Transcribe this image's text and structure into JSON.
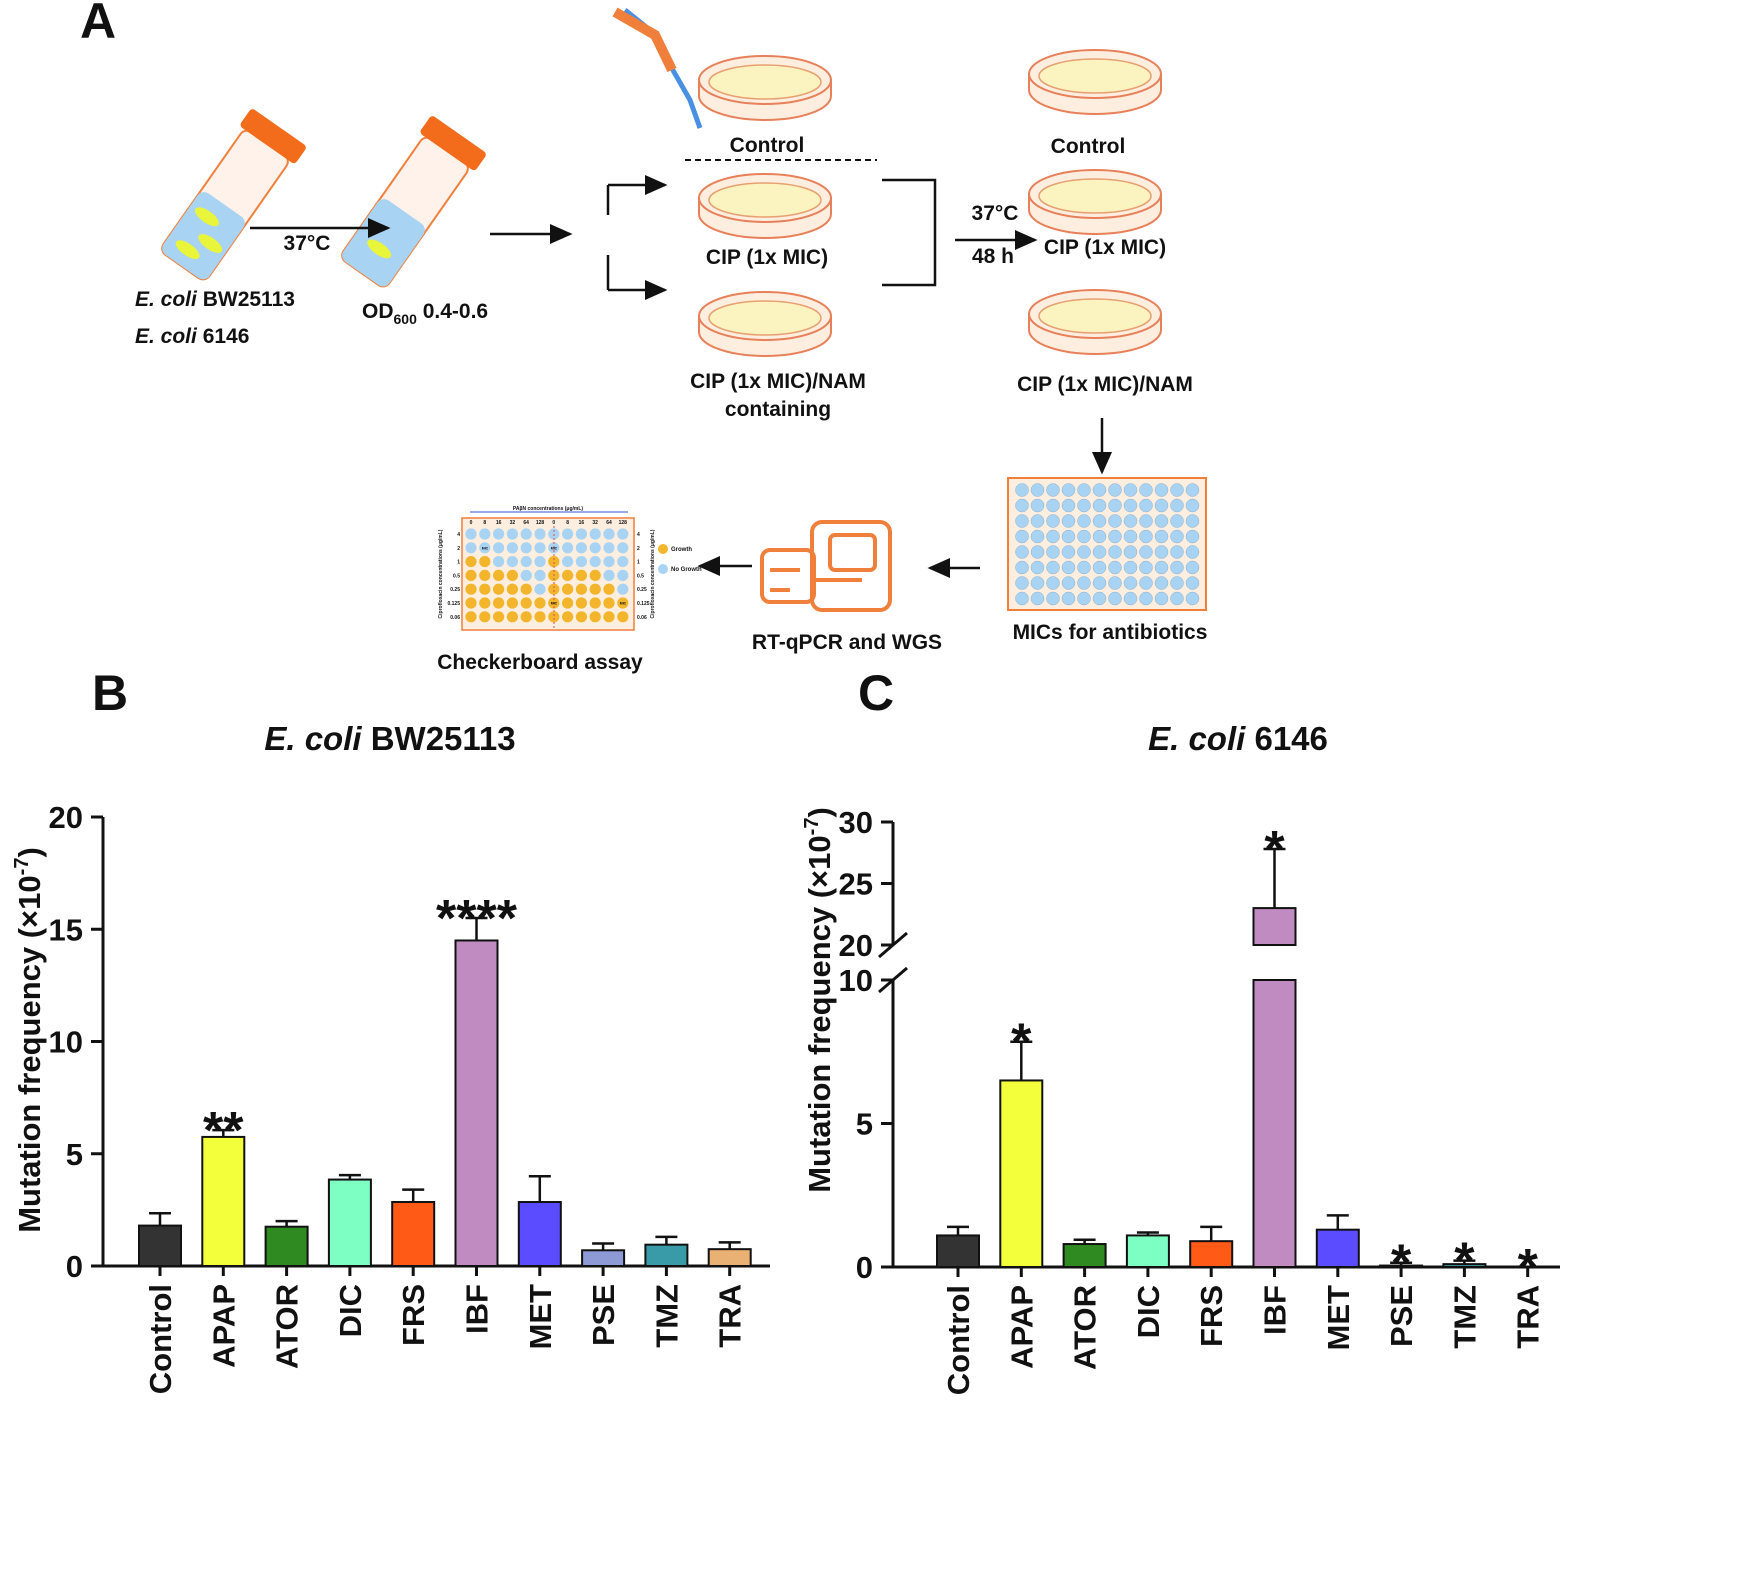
{
  "panel_labels": [
    "A",
    "B",
    "C"
  ],
  "diagram": {
    "strains": [
      [
        "E. coli",
        "BW25113"
      ],
      [
        "E. coli",
        "6146"
      ]
    ],
    "incubation_1": "37°C",
    "od": [
      "OD",
      "600",
      "0.4-0.6"
    ],
    "plates_left": [
      "Control",
      "CIP (1x MIC)",
      "CIP (1x MIC)/NAM",
      "containing"
    ],
    "incubation_2": [
      "37°C",
      "48 h"
    ],
    "plates_right": [
      "Control",
      "CIP (1x MIC)",
      "CIP (1x MIC)/NAM"
    ],
    "mic_step": "MICs for antibiotics",
    "sequencing_step": "RT-qPCR and WGS",
    "checkerboard_step": "Checkerboard assay",
    "checkerboard": {
      "x_title": "PAβN concentrations (μg/mL)",
      "columns": [
        "0",
        "8",
        "16",
        "32",
        "64",
        "128"
      ],
      "rows": [
        "4",
        "2",
        "1",
        "0.5",
        "0.25",
        "0.125",
        "0.06"
      ],
      "y_title": "Ciprofloxacin concentrations (μg/mL)",
      "legend": [
        "Growth",
        "No Growth"
      ],
      "mic": "MIC"
    }
  },
  "chart_data": [
    {
      "type": "bar",
      "title": [
        "E. coli",
        "BW25113"
      ],
      "ylabel": [
        "Mutation frequency (×10",
        "-7",
        ")"
      ],
      "categories": [
        "Control",
        "APAP",
        "ATOR",
        "DIC",
        "FRS",
        "IBF",
        "MET",
        "PSE",
        "TMZ",
        "TRA"
      ],
      "values": [
        1.8,
        5.75,
        1.75,
        3.85,
        2.85,
        14.5,
        2.85,
        0.7,
        0.95,
        0.75
      ],
      "errors": [
        0.55,
        0.3,
        0.25,
        0.2,
        0.55,
        1.0,
        1.15,
        0.3,
        0.35,
        0.3
      ],
      "annotations": [
        null,
        "**",
        null,
        null,
        null,
        "****",
        null,
        null,
        null,
        null
      ],
      "colors": [
        "#333333",
        "#f3ff3a",
        "#2f8a22",
        "#7dffc4",
        "#ff5b16",
        "#c08bc0",
        "#5b4dff",
        "#8d9ad6",
        "#3a9ba8",
        "#e9b173"
      ],
      "ylim": [
        0,
        20
      ],
      "yticks": [
        0,
        5,
        10,
        15,
        20
      ]
    },
    {
      "type": "bar",
      "title": [
        "E. coli",
        "6146"
      ],
      "ylabel": [
        "Mutation frequency (×10",
        "-7",
        ")"
      ],
      "categories": [
        "Control",
        "APAP",
        "ATOR",
        "DIC",
        "FRS",
        "IBF",
        "MET",
        "PSE",
        "TMZ",
        "TRA"
      ],
      "values": [
        1.1,
        6.5,
        0.8,
        1.1,
        0.9,
        23,
        1.3,
        0.05,
        0.1,
        0
      ],
      "errors": [
        0.3,
        1.35,
        0.15,
        0.1,
        0.5,
        4.8,
        0.5,
        0.1,
        0.12,
        0
      ],
      "annotations": [
        null,
        "*",
        null,
        null,
        null,
        "*",
        null,
        "*",
        "*",
        "*"
      ],
      "colors": [
        "#333333",
        "#f3ff3a",
        "#2f8a22",
        "#7dffc4",
        "#ff5b16",
        "#c08bc0",
        "#5b4dff",
        "#8d9ad6",
        "#3a9ba8",
        "#e9b173"
      ],
      "ylim": [
        0,
        30
      ],
      "ybreak": [
        10,
        20
      ],
      "yticks": [
        0,
        5,
        10,
        20,
        25,
        30
      ]
    }
  ]
}
